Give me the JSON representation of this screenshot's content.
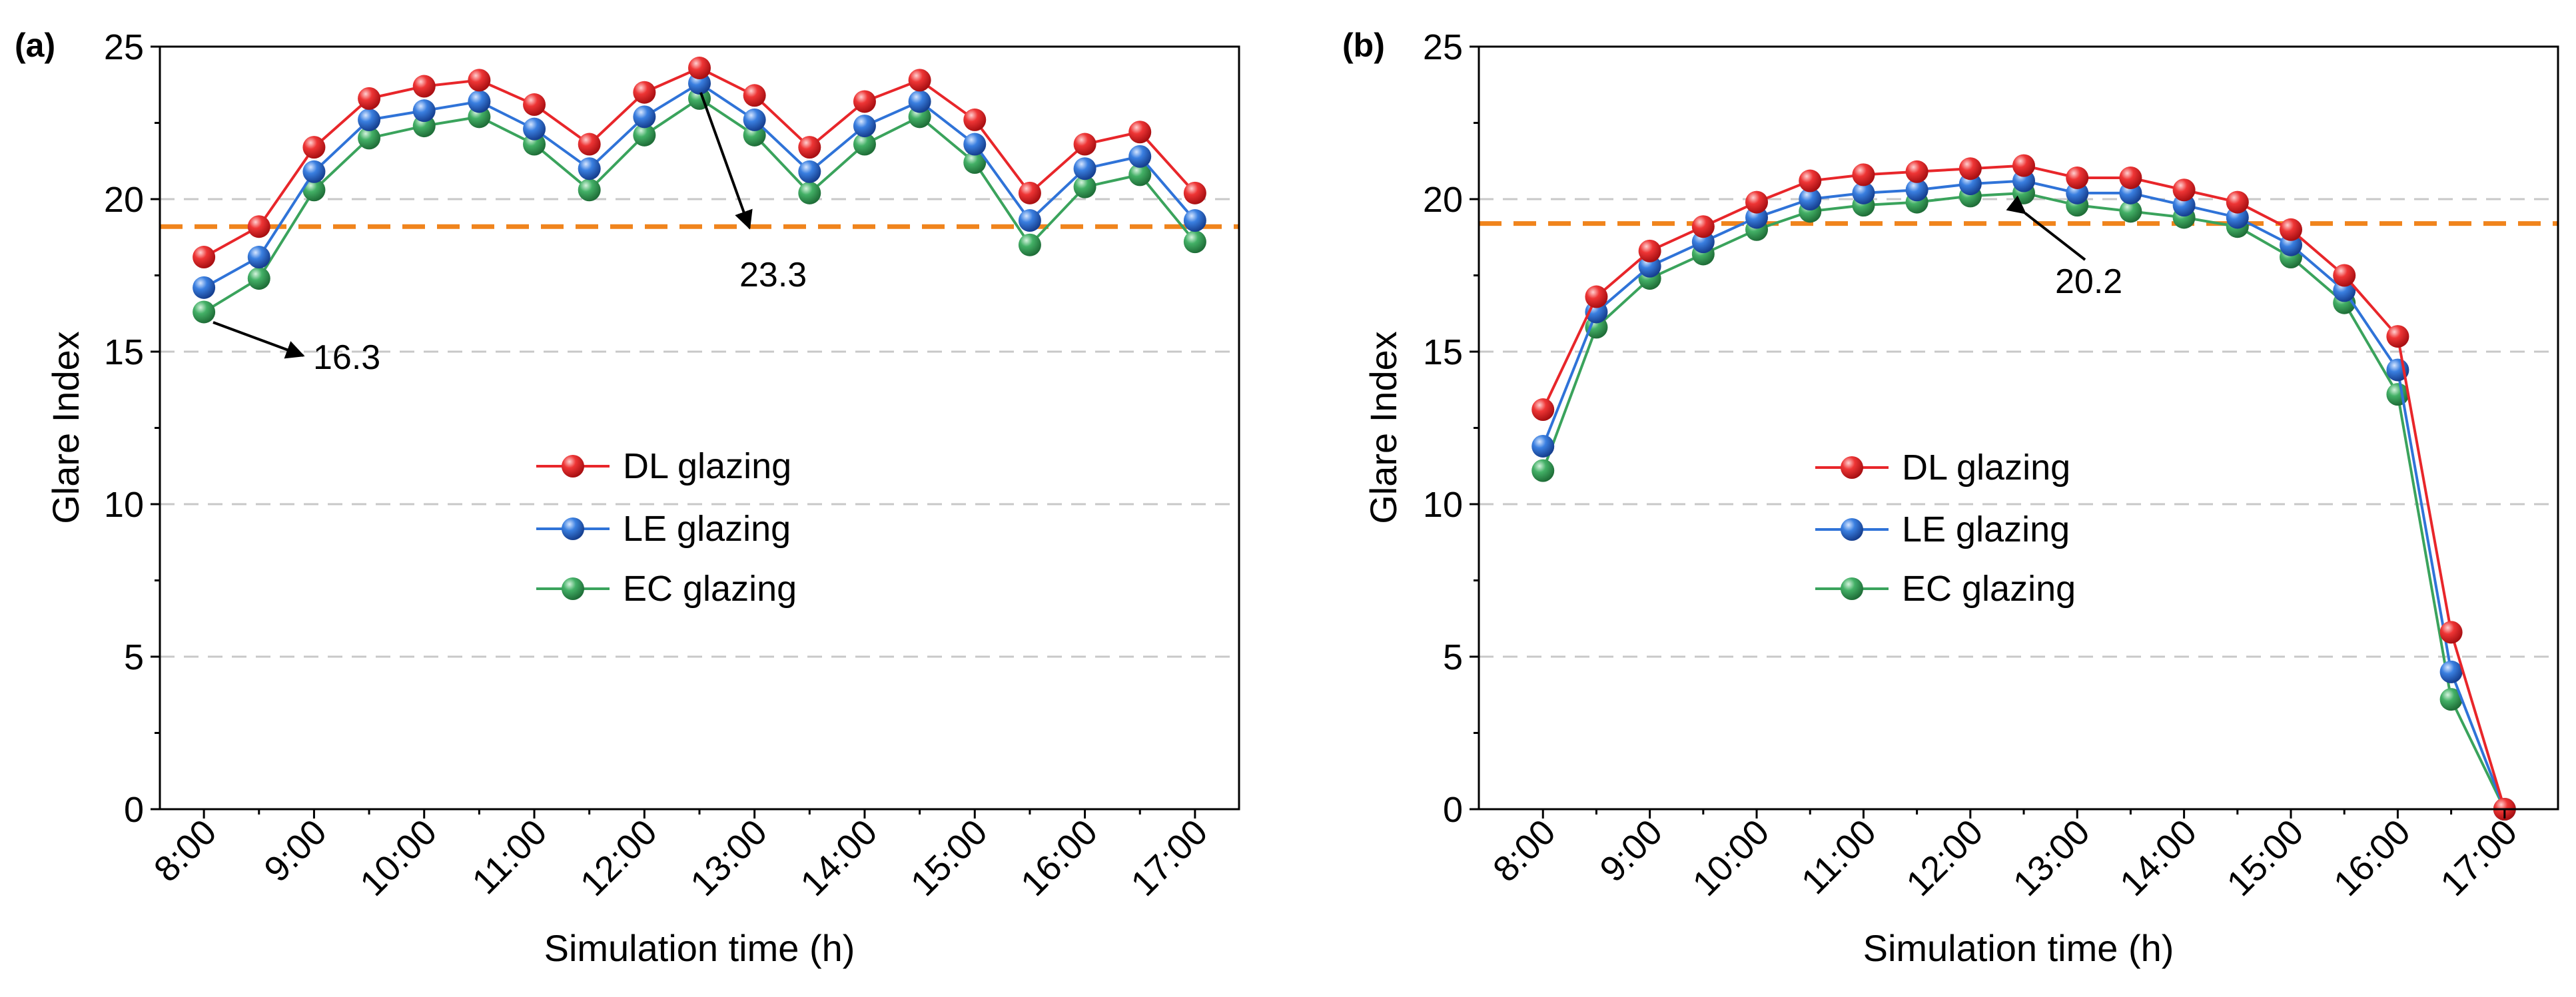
{
  "chart_data": [
    {
      "type": "line",
      "panel_label": "(a)",
      "xlabel": "Simulation time (h)",
      "ylabel": "Glare Index",
      "ylim": [
        0,
        25
      ],
      "yticks": [
        "0",
        "5",
        "10",
        "15",
        "20",
        "25"
      ],
      "categories": [
        "8:00",
        "9:00",
        "10:00",
        "11:00",
        "12:00",
        "13:00",
        "14:00",
        "15:00",
        "16:00",
        "17:00"
      ],
      "x": [
        8,
        8.5,
        9,
        9.5,
        10,
        10.5,
        11,
        11.5,
        12,
        12.5,
        13,
        13.5,
        14,
        14.5,
        15,
        15.5,
        16,
        16.5,
        17
      ],
      "xlim": [
        7.6,
        17.4
      ],
      "series": [
        {
          "name": "DL glazing",
          "color": "#e8262a",
          "values": [
            18.1,
            19.1,
            21.7,
            23.3,
            23.7,
            23.9,
            23.1,
            21.8,
            23.5,
            24.3,
            23.4,
            21.7,
            23.2,
            23.9,
            22.6,
            20.2,
            21.8,
            22.2,
            20.2
          ]
        },
        {
          "name": "LE glazing",
          "color": "#2f73d8",
          "values": [
            17.1,
            18.1,
            20.9,
            22.6,
            22.9,
            23.2,
            22.3,
            21.0,
            22.7,
            23.8,
            22.6,
            20.9,
            22.4,
            23.2,
            21.8,
            19.3,
            21.0,
            21.4,
            19.3
          ]
        },
        {
          "name": "EC glazing",
          "color": "#3aa35c",
          "values": [
            16.3,
            17.4,
            20.3,
            22.0,
            22.4,
            22.7,
            21.8,
            20.3,
            22.1,
            23.3,
            22.1,
            20.2,
            21.8,
            22.7,
            21.2,
            18.5,
            20.4,
            20.8,
            18.6
          ]
        }
      ],
      "reference_line": 19.1,
      "reference_color": "#f0841c",
      "grid_lines": [
        5,
        10,
        15,
        20
      ],
      "legend": "center",
      "annotations": [
        {
          "text": "16.3",
          "x": 8,
          "y": 16.3
        },
        {
          "text": "23.3",
          "x": 12.5,
          "y": 23.3
        }
      ]
    },
    {
      "type": "line",
      "panel_label": "(b)",
      "xlabel": "Simulation time (h)",
      "ylabel": "Glare Index",
      "ylim": [
        0,
        25
      ],
      "yticks": [
        "0",
        "5",
        "10",
        "15",
        "20",
        "25"
      ],
      "categories": [
        "8:00",
        "9:00",
        "10:00",
        "11:00",
        "12:00",
        "13:00",
        "14:00",
        "15:00",
        "16:00",
        "17:00"
      ],
      "x": [
        8,
        8.5,
        9,
        9.5,
        10,
        10.5,
        11,
        11.5,
        12,
        12.5,
        13,
        13.5,
        14,
        14.5,
        15,
        15.5,
        16,
        16.5,
        17
      ],
      "xlim": [
        7.4,
        17.5
      ],
      "series": [
        {
          "name": "DL glazing",
          "color": "#e8262a",
          "values": [
            13.1,
            16.8,
            18.3,
            19.1,
            19.9,
            20.6,
            20.8,
            20.9,
            21.0,
            21.1,
            20.7,
            20.7,
            20.3,
            19.9,
            19.0,
            17.5,
            15.5,
            5.8,
            0
          ]
        },
        {
          "name": "LE glazing",
          "color": "#2f73d8",
          "values": [
            11.9,
            16.3,
            17.8,
            18.6,
            19.4,
            20.0,
            20.2,
            20.3,
            20.5,
            20.6,
            20.2,
            20.2,
            19.8,
            19.4,
            18.5,
            17.0,
            14.4,
            4.5,
            0
          ]
        },
        {
          "name": "EC glazing",
          "color": "#3aa35c",
          "values": [
            11.1,
            15.8,
            17.4,
            18.2,
            19.0,
            19.6,
            19.8,
            19.9,
            20.1,
            20.2,
            19.8,
            19.6,
            19.4,
            19.1,
            18.1,
            16.6,
            13.6,
            3.6,
            0
          ]
        }
      ],
      "reference_line": 19.2,
      "reference_color": "#f0841c",
      "grid_lines": [
        5,
        10,
        15,
        20
      ],
      "legend": "center",
      "annotations": [
        {
          "text": "20.2",
          "x": 12.5,
          "y": 20.2
        }
      ]
    }
  ]
}
